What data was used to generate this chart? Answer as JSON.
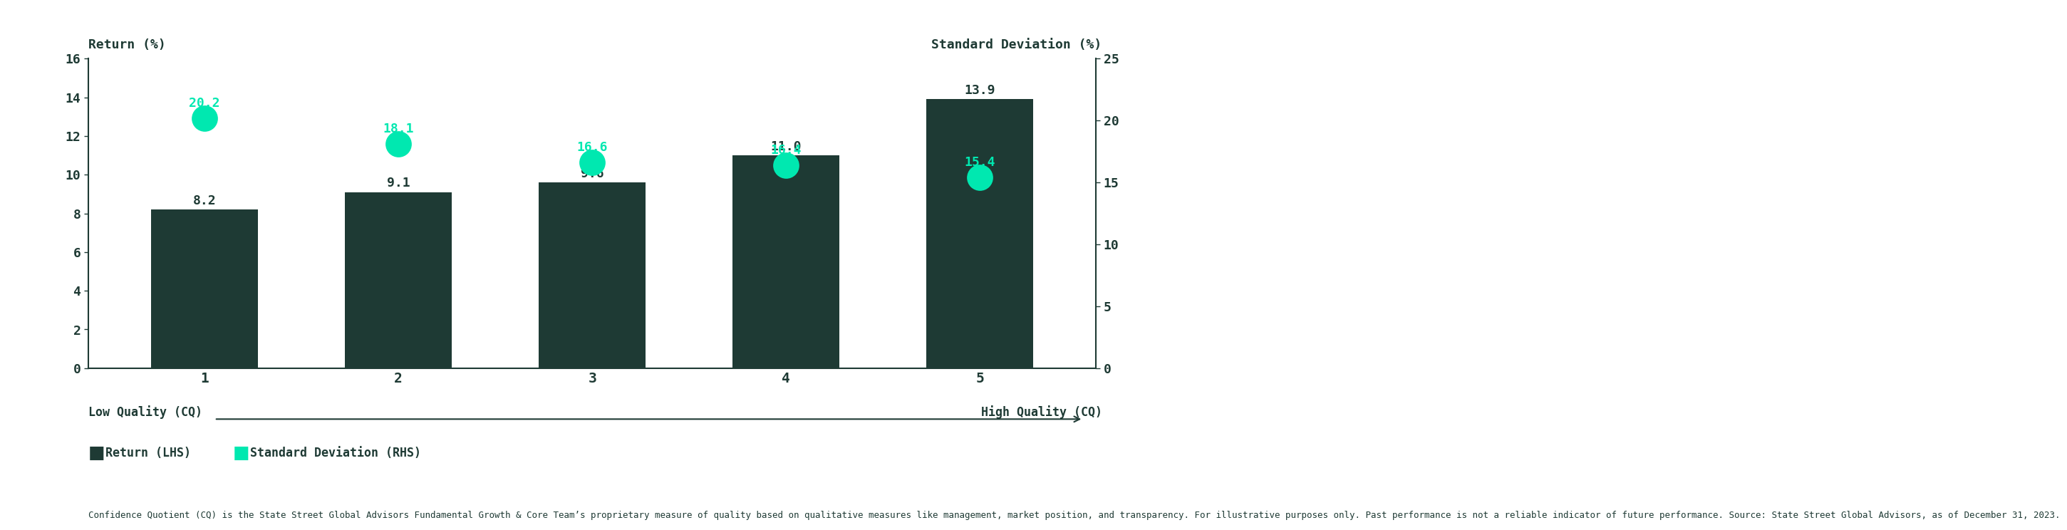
{
  "categories": [
    1,
    2,
    3,
    4,
    5
  ],
  "bar_values": [
    8.2,
    9.1,
    9.6,
    11.0,
    13.9
  ],
  "dot_values": [
    20.2,
    18.1,
    16.6,
    16.4,
    15.4
  ],
  "bar_labels": [
    "8.2",
    "9.1",
    "9.6",
    "11.0",
    "13.9"
  ],
  "dot_labels": [
    "20.2",
    "18.1",
    "16.6",
    "16.4",
    "15.4"
  ],
  "bar_color": "#1e3a34",
  "dot_color": "#00e8b0",
  "background_color": "#ffffff",
  "text_color": "#1e3a34",
  "lhs_ylabel": "Return (%)",
  "rhs_ylabel": "Standard Deviation (%)",
  "lhs_ylim": [
    0,
    16
  ],
  "rhs_ylim": [
    0,
    25
  ],
  "lhs_yticks": [
    0,
    2,
    4,
    6,
    8,
    10,
    12,
    14,
    16
  ],
  "rhs_yticks": [
    0,
    5,
    10,
    15,
    20,
    25
  ],
  "xlabel_left": "Low Quality (CQ)",
  "xlabel_right": "High Quality (CQ)",
  "legend_bar": "Return (LHS)",
  "legend_dot": "Standard Deviation (RHS)",
  "footnote": "Confidence Quotient (CQ) is the State Street Global Advisors Fundamental Growth & Core Team’s proprietary measure of quality based on qualitative measures like management, market position, and transparency. For illustrative purposes only. Past performance is not a reliable indicator of future performance. Source: State Street Global Advisors, as of December 31, 2023."
}
